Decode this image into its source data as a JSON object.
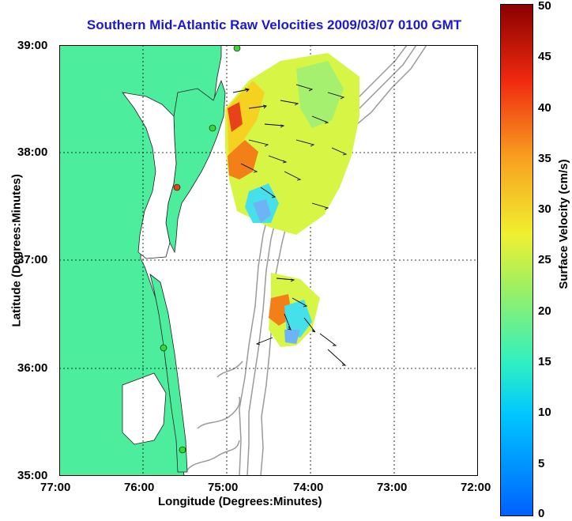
{
  "title": "Southern Mid-Atlantic Raw Velocities 2009/03/07 0100 GMT",
  "axes": {
    "xlabel": "Longitude (Degrees:Minutes)",
    "ylabel": "Latitude (Degrees:Minutes)",
    "x_ticks": [
      "77:00",
      "76:00",
      "75:00",
      "74:00",
      "73:00",
      "72:00"
    ],
    "y_ticks": [
      "39:00",
      "38:00",
      "37:00",
      "36:00",
      "35:00"
    ]
  },
  "colorbar": {
    "label": "Surface Velocity (cm/s)",
    "ticks": [
      "0",
      "5",
      "10",
      "15",
      "20",
      "25",
      "30",
      "35",
      "40",
      "45",
      "50"
    ],
    "min": 0,
    "max": 50
  },
  "colors": {
    "land": "#4ded9e",
    "water": "#ffffff",
    "title": "#1a1acc",
    "bathymetry": "#9a9a9a"
  }
}
